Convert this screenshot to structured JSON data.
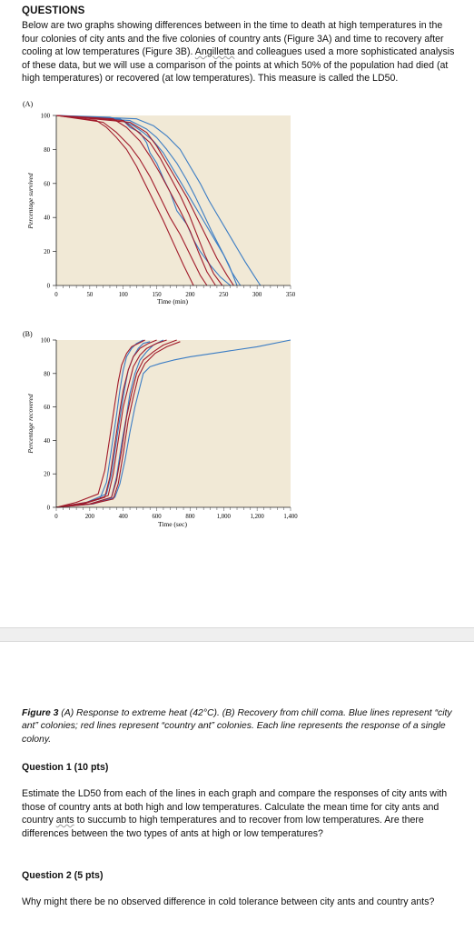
{
  "doc": {
    "heading": "QUESTIONS",
    "intro_parts": [
      "Below are two graphs showing differences between in the time to death at high temperatures in the four colonies of city ants and the five colonies of country ants (Figure 3A) and time to recovery after cooling at low temperatures (Figure 3B). ",
      "Angilletta",
      " and colleagues used a more sophisticated analysis of these data, but we will use a comparison of the points at which 50% of the population had died (at high temperatures) or recovered (at low temperatures). This measure is called the LD50."
    ],
    "caption_fig": "Figure 3",
    "caption_text": "   (A) Response to extreme heat (42°C). (B) Recovery from chill coma. Blue lines represent “city ant” colonies; red lines represent “country ant” colonies. Each line represents the response of a single colony.",
    "q1_title": "Question 1 (10 pts)",
    "q1_body_parts": [
      "Estimate the LD50 from each of the lines in each graph and compare the responses of city ants with those of country ants at both high and low temperatures. Calculate the mean time for city ants and country ",
      "ants",
      " to succumb to high temperatures and to recover from low temperatures. Are there differences between the two types of ants at high or low temperatures?"
    ],
    "q2_title": "Question 2 (5 pts)",
    "q2_body": "Why might there be no observed difference in cold tolerance between city ants and country ants?"
  },
  "colors": {
    "city": "#3a7cc4",
    "country": "#a11a2a",
    "panel": "#f1e9d6"
  },
  "chart_data": [
    {
      "type": "line",
      "panel_label": "(A)",
      "xlabel": "Time (min)",
      "ylabel": "Percentage survived",
      "xlim": [
        0,
        350
      ],
      "ylim": [
        0,
        100
      ],
      "xticks": [
        0,
        50,
        100,
        150,
        200,
        250,
        300,
        350
      ],
      "yticks": [
        0,
        20,
        40,
        60,
        80,
        100
      ],
      "series": [
        {
          "group": "city",
          "x": [
            0,
            80,
            100,
            110,
            125,
            135,
            140,
            150,
            160,
            170,
            180,
            195,
            205,
            215,
            230,
            245,
            260
          ],
          "y": [
            100,
            99,
            97,
            93,
            90,
            84,
            78,
            72,
            63,
            55,
            44,
            36,
            27,
            20,
            12,
            5,
            0
          ]
        },
        {
          "group": "city",
          "x": [
            0,
            95,
            115,
            130,
            145,
            160,
            175,
            190,
            205,
            220,
            235,
            250,
            262,
            275
          ],
          "y": [
            100,
            98,
            94,
            90,
            85,
            78,
            68,
            58,
            48,
            38,
            28,
            18,
            8,
            0
          ]
        },
        {
          "group": "city",
          "x": [
            0,
            110,
            135,
            150,
            165,
            180,
            195,
            208,
            220,
            232,
            245,
            258,
            270
          ],
          "y": [
            100,
            97,
            92,
            87,
            80,
            72,
            62,
            52,
            42,
            32,
            22,
            12,
            0
          ]
        },
        {
          "group": "city",
          "x": [
            0,
            120,
            145,
            165,
            185,
            200,
            215,
            228,
            240,
            255,
            270,
            282,
            295,
            305
          ],
          "y": [
            100,
            98,
            94,
            88,
            80,
            70,
            60,
            50,
            42,
            32,
            22,
            14,
            6,
            0
          ]
        },
        {
          "group": "country",
          "x": [
            0,
            60,
            75,
            90,
            105,
            120,
            130,
            145,
            160,
            175,
            190,
            205
          ],
          "y": [
            100,
            97,
            93,
            87,
            80,
            70,
            62,
            50,
            38,
            25,
            12,
            0
          ]
        },
        {
          "group": "country",
          "x": [
            0,
            70,
            90,
            110,
            125,
            140,
            155,
            170,
            185,
            200,
            215,
            225
          ],
          "y": [
            100,
            96,
            90,
            82,
            74,
            64,
            52,
            40,
            30,
            18,
            6,
            0
          ]
        },
        {
          "group": "country",
          "x": [
            0,
            85,
            105,
            125,
            140,
            155,
            170,
            185,
            200,
            212,
            225,
            238
          ],
          "y": [
            100,
            98,
            93,
            85,
            76,
            66,
            55,
            44,
            32,
            20,
            8,
            0
          ]
        },
        {
          "group": "country",
          "x": [
            0,
            100,
            120,
            140,
            155,
            170,
            185,
            198,
            210,
            222,
            235,
            248
          ],
          "y": [
            100,
            97,
            91,
            84,
            75,
            64,
            53,
            42,
            30,
            18,
            7,
            0
          ]
        },
        {
          "group": "country",
          "x": [
            0,
            110,
            135,
            150,
            165,
            180,
            195,
            210,
            225,
            240,
            255,
            265
          ],
          "y": [
            100,
            96,
            90,
            82,
            72,
            62,
            52,
            40,
            28,
            16,
            6,
            0
          ]
        }
      ]
    },
    {
      "type": "line",
      "panel_label": "(B)",
      "xlabel": "Time (sec)",
      "ylabel": "Percentage recovered",
      "xlim": [
        0,
        1400
      ],
      "ylim": [
        0,
        100
      ],
      "xticks": [
        0,
        200,
        400,
        600,
        800,
        1000,
        1200,
        1400
      ],
      "xticklabels": [
        "0",
        "200",
        "400",
        "600",
        "800",
        "1,000",
        "1,200",
        "1,400"
      ],
      "yticks": [
        0,
        20,
        40,
        60,
        80,
        100
      ],
      "series": [
        {
          "group": "city",
          "x": [
            0,
            150,
            260,
            300,
            330,
            360,
            380,
            400,
            420,
            450,
            480,
            520
          ],
          "y": [
            0,
            2,
            5,
            15,
            35,
            55,
            70,
            82,
            90,
            95,
            98,
            100
          ]
        },
        {
          "group": "city",
          "x": [
            0,
            180,
            300,
            330,
            360,
            390,
            410,
            430,
            460,
            490,
            520,
            560
          ],
          "y": [
            0,
            3,
            8,
            20,
            40,
            60,
            72,
            82,
            90,
            95,
            98,
            99
          ]
        },
        {
          "group": "city",
          "x": [
            0,
            200,
            330,
            360,
            390,
            420,
            440,
            470,
            500,
            540,
            580,
            640
          ],
          "y": [
            0,
            2,
            6,
            18,
            38,
            55,
            68,
            80,
            88,
            93,
            97,
            100
          ]
        },
        {
          "group": "city",
          "x": [
            0,
            220,
            350,
            380,
            410,
            440,
            470,
            500,
            520,
            560,
            620,
            700,
            800,
            1000,
            1200,
            1400
          ],
          "y": [
            0,
            2,
            6,
            14,
            28,
            45,
            60,
            72,
            80,
            84,
            86,
            88,
            90,
            93,
            96,
            100
          ]
        },
        {
          "group": "country",
          "x": [
            0,
            120,
            250,
            290,
            320,
            350,
            370,
            390,
            420,
            450,
            490,
            530
          ],
          "y": [
            0,
            3,
            8,
            22,
            42,
            62,
            75,
            85,
            92,
            96,
            98,
            100
          ]
        },
        {
          "group": "country",
          "x": [
            0,
            160,
            290,
            320,
            350,
            380,
            400,
            430,
            460,
            500,
            550,
            600
          ],
          "y": [
            0,
            2,
            6,
            18,
            38,
            58,
            70,
            82,
            90,
            95,
            98,
            100
          ]
        },
        {
          "group": "country",
          "x": [
            0,
            180,
            310,
            340,
            370,
            400,
            430,
            460,
            500,
            540,
            600,
            660
          ],
          "y": [
            0,
            3,
            7,
            20,
            40,
            60,
            72,
            84,
            91,
            95,
            98,
            100
          ]
        },
        {
          "group": "country",
          "x": [
            0,
            200,
            330,
            360,
            390,
            420,
            450,
            480,
            520,
            580,
            640,
            720
          ],
          "y": [
            0,
            2,
            6,
            16,
            34,
            54,
            68,
            80,
            88,
            93,
            97,
            100
          ]
        },
        {
          "group": "country",
          "x": [
            0,
            210,
            340,
            370,
            400,
            430,
            460,
            490,
            530,
            590,
            660,
            740
          ],
          "y": [
            0,
            2,
            5,
            14,
            32,
            52,
            66,
            78,
            86,
            92,
            96,
            99
          ]
        }
      ]
    }
  ]
}
